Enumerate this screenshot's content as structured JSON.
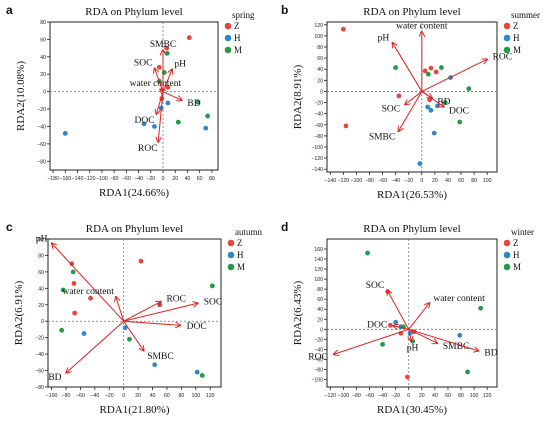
{
  "colors": {
    "Z": "#e8453c",
    "H": "#2f86c8",
    "M": "#229a4a",
    "arrow": "#e01f1f",
    "frame": "#222222",
    "refline": "#777777"
  },
  "chart_data": [
    {
      "panel": "a",
      "type": "scatter",
      "title": "RDA on Phylum level",
      "xlabel": "RDA1(24.66%)",
      "ylabel": "RDA2(10.08%)",
      "xlim": [
        -185,
        90
      ],
      "ylim": [
        -90,
        80
      ],
      "xticks": [
        -180,
        -160,
        -140,
        -120,
        -100,
        -80,
        -60,
        -40,
        -20,
        0,
        20,
        40,
        60,
        80
      ],
      "yticks": [
        -80,
        -60,
        -40,
        -20,
        0,
        20,
        40,
        60,
        80
      ],
      "legend": {
        "title": "spring",
        "entries": [
          "Z",
          "H",
          "M"
        ],
        "position": "top-right"
      },
      "arrows": [
        {
          "label": "SMBC",
          "x": 0,
          "y": 48
        },
        {
          "label": "SOC",
          "x": -14,
          "y": 27
        },
        {
          "label": "pH",
          "x": 15,
          "y": 26
        },
        {
          "label": "water content",
          "x": -5,
          "y": 3
        },
        {
          "label": "BD",
          "x": 31,
          "y": -10
        },
        {
          "label": "DOC",
          "x": -11,
          "y": -26
        },
        {
          "label": "ROC",
          "x": -8,
          "y": -58
        }
      ],
      "points": [
        {
          "g": "Z",
          "x": 43,
          "y": 62
        },
        {
          "g": "Z",
          "x": 6,
          "y": 50
        },
        {
          "g": "Z",
          "x": 8,
          "y": 5
        },
        {
          "g": "Z",
          "x": -2,
          "y": -8
        },
        {
          "g": "Z",
          "x": -6,
          "y": 28
        },
        {
          "g": "H",
          "x": -160,
          "y": -48
        },
        {
          "g": "H",
          "x": -31,
          "y": -37
        },
        {
          "g": "H",
          "x": -14,
          "y": -40
        },
        {
          "g": "H",
          "x": -3,
          "y": -19
        },
        {
          "g": "H",
          "x": 8,
          "y": -13
        },
        {
          "g": "H",
          "x": 70,
          "y": -42
        },
        {
          "g": "M",
          "x": 7,
          "y": 44
        },
        {
          "g": "M",
          "x": 2,
          "y": 22
        },
        {
          "g": "M",
          "x": -6,
          "y": 12
        },
        {
          "g": "M",
          "x": 25,
          "y": -35
        },
        {
          "g": "M",
          "x": 57,
          "y": -12
        },
        {
          "g": "M",
          "x": 73,
          "y": -28
        }
      ]
    },
    {
      "panel": "b",
      "type": "scatter",
      "title": "RDA on Phylum level",
      "xlabel": "RDA1(26.53%)",
      "ylabel": "RDA2(8.91%)",
      "xlim": [
        -145,
        115
      ],
      "ylim": [
        -145,
        125
      ],
      "xticks": [
        -140,
        -120,
        -100,
        -80,
        -60,
        -40,
        -20,
        0,
        20,
        40,
        60,
        80,
        100
      ],
      "yticks": [
        -140,
        -120,
        -100,
        -80,
        -60,
        -40,
        -20,
        0,
        20,
        40,
        60,
        80,
        100,
        120
      ],
      "legend": {
        "title": "summer",
        "entries": [
          "Z",
          "H",
          "M"
        ],
        "position": "top-right"
      },
      "arrows": [
        {
          "label": "water content",
          "x": 0,
          "y": 108
        },
        {
          "label": "pH",
          "x": -45,
          "y": 88
        },
        {
          "label": "ROC",
          "x": 100,
          "y": 58
        },
        {
          "label": "BD",
          "x": 16,
          "y": -12
        },
        {
          "label": "DOC",
          "x": 34,
          "y": -28
        },
        {
          "label": "SOC",
          "x": -26,
          "y": -24
        },
        {
          "label": "SMBC",
          "x": -36,
          "y": -72
        }
      ],
      "points": [
        {
          "g": "Z",
          "x": -120,
          "y": 112
        },
        {
          "g": "Z",
          "x": -116,
          "y": -62
        },
        {
          "g": "Z",
          "x": 5,
          "y": 37
        },
        {
          "g": "Z",
          "x": 14,
          "y": 42
        },
        {
          "g": "Z",
          "x": 22,
          "y": 35
        },
        {
          "g": "Z",
          "x": 12,
          "y": -15
        },
        {
          "g": "Z",
          "x": -35,
          "y": -8
        },
        {
          "g": "H",
          "x": -3,
          "y": -130
        },
        {
          "g": "H",
          "x": 9,
          "y": -28
        },
        {
          "g": "H",
          "x": 14,
          "y": -34
        },
        {
          "g": "H",
          "x": 19,
          "y": -75
        },
        {
          "g": "H",
          "x": 44,
          "y": 25
        },
        {
          "g": "H",
          "x": 24,
          "y": -26
        },
        {
          "g": "M",
          "x": -40,
          "y": 43
        },
        {
          "g": "M",
          "x": 10,
          "y": 31
        },
        {
          "g": "M",
          "x": 30,
          "y": 43
        },
        {
          "g": "M",
          "x": 72,
          "y": 5
        },
        {
          "g": "M",
          "x": 58,
          "y": -55
        },
        {
          "g": "M",
          "x": 36,
          "y": -20
        }
      ]
    },
    {
      "panel": "c",
      "type": "scatter",
      "title": "RDA on Phylum level",
      "xlabel": "RDA1(21.80%)",
      "ylabel": "RDA2(6.91%)",
      "xlim": [
        -105,
        135
      ],
      "ylim": [
        -80,
        100
      ],
      "xticks": [
        -100,
        -80,
        -60,
        -40,
        -20,
        0,
        20,
        40,
        60,
        80,
        100,
        120
      ],
      "yticks": [
        -80,
        -60,
        -40,
        -20,
        0,
        20,
        40,
        60,
        80,
        100
      ],
      "legend": {
        "title": "autumn",
        "entries": [
          "Z",
          "H",
          "M"
        ],
        "position": "top-right"
      },
      "arrows": [
        {
          "label": "pH",
          "x": -100,
          "y": 95
        },
        {
          "label": "water content",
          "x": -11,
          "y": 30
        },
        {
          "label": "ROC",
          "x": 52,
          "y": 24
        },
        {
          "label": "SOC",
          "x": 103,
          "y": 22
        },
        {
          "label": "DOC",
          "x": 79,
          "y": -5
        },
        {
          "label": "SMBC",
          "x": 28,
          "y": -36
        },
        {
          "label": "BD",
          "x": -80,
          "y": -63
        }
      ],
      "points": [
        {
          "g": "Z",
          "x": -72,
          "y": 70
        },
        {
          "g": "Z",
          "x": -69,
          "y": 46
        },
        {
          "g": "Z",
          "x": -46,
          "y": 28
        },
        {
          "g": "Z",
          "x": 24,
          "y": 73
        },
        {
          "g": "Z",
          "x": 50,
          "y": 20
        },
        {
          "g": "Z",
          "x": -68,
          "y": 10
        },
        {
          "g": "H",
          "x": -55,
          "y": -15
        },
        {
          "g": "H",
          "x": 2,
          "y": -8
        },
        {
          "g": "H",
          "x": 43,
          "y": -53
        },
        {
          "g": "H",
          "x": 102,
          "y": -62
        },
        {
          "g": "M",
          "x": -84,
          "y": 38
        },
        {
          "g": "M",
          "x": -86,
          "y": -11
        },
        {
          "g": "M",
          "x": -70,
          "y": 60
        },
        {
          "g": "M",
          "x": 8,
          "y": -22
        },
        {
          "g": "M",
          "x": 109,
          "y": -66
        },
        {
          "g": "M",
          "x": 123,
          "y": 43
        }
      ]
    },
    {
      "panel": "d",
      "type": "scatter",
      "title": "RDA on Phylum level",
      "xlabel": "RDA1(30.45%)",
      "ylabel": "RDA2(6.43%)",
      "xlim": [
        -125,
        135
      ],
      "ylim": [
        -115,
        180
      ],
      "xticks": [
        -120,
        -100,
        -80,
        -60,
        -40,
        -20,
        0,
        20,
        40,
        60,
        80,
        100,
        120
      ],
      "yticks": [
        -100,
        -80,
        -60,
        -40,
        -20,
        0,
        20,
        40,
        60,
        80,
        100,
        120,
        140,
        160
      ],
      "legend": {
        "title": "winter",
        "entries": [
          "Z",
          "H",
          "M"
        ],
        "position": "top-right"
      },
      "arrows": [
        {
          "label": "SOC",
          "x": -33,
          "y": 78
        },
        {
          "label": "water content",
          "x": 32,
          "y": 53
        },
        {
          "label": "DOC",
          "x": -24,
          "y": 7
        },
        {
          "label": "pH",
          "x": 4,
          "y": -24
        },
        {
          "label": "SMBC",
          "x": 44,
          "y": -28
        },
        {
          "label": "BD",
          "x": 107,
          "y": -43
        },
        {
          "label": "ROC",
          "x": -115,
          "y": -50
        }
      ],
      "points": [
        {
          "g": "Z",
          "x": -32,
          "y": 75
        },
        {
          "g": "Z",
          "x": -12,
          "y": -8
        },
        {
          "g": "Z",
          "x": -2,
          "y": -95
        },
        {
          "g": "Z",
          "x": 8,
          "y": -5
        },
        {
          "g": "Z",
          "x": -28,
          "y": 8
        },
        {
          "g": "H",
          "x": -20,
          "y": 14
        },
        {
          "g": "H",
          "x": -12,
          "y": 5
        },
        {
          "g": "H",
          "x": 78,
          "y": -12
        },
        {
          "g": "H",
          "x": 2,
          "y": -8
        },
        {
          "g": "M",
          "x": -63,
          "y": 152
        },
        {
          "g": "M",
          "x": -8,
          "y": 5
        },
        {
          "g": "M",
          "x": -40,
          "y": -30
        },
        {
          "g": "M",
          "x": 6,
          "y": -24
        },
        {
          "g": "M",
          "x": 90,
          "y": -85
        },
        {
          "g": "M",
          "x": 110,
          "y": 42
        }
      ]
    }
  ],
  "panels": [
    {
      "letter": "a",
      "plot": {
        "l": 50,
        "t": 22,
        "r": 218,
        "b": 170
      }
    },
    {
      "letter": "b",
      "plot": {
        "l": 52,
        "t": 22,
        "r": 222,
        "b": 172
      }
    },
    {
      "letter": "c",
      "plot": {
        "l": 48,
        "t": 22,
        "r": 221,
        "b": 170
      }
    },
    {
      "letter": "d",
      "plot": {
        "l": 52,
        "t": 22,
        "r": 222,
        "b": 170
      }
    }
  ]
}
